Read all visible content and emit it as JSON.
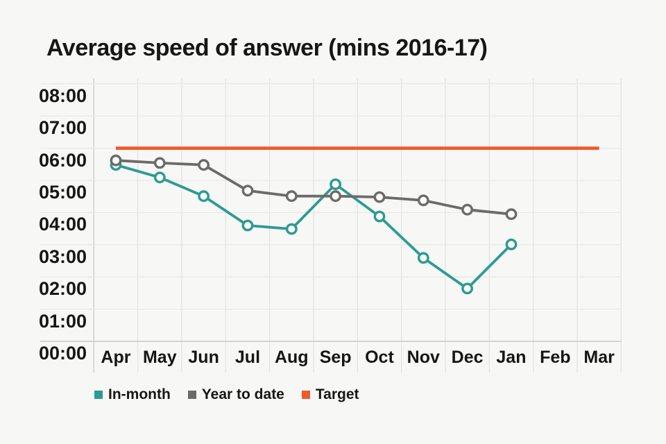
{
  "title": "Average speed of answer (mins 2016-17)",
  "legend": [
    {
      "label": "In-month",
      "color": "#2b9b93"
    },
    {
      "label": "Year to date",
      "color": "#6c6b69"
    },
    {
      "label": "Target",
      "color": "#f1592a"
    }
  ],
  "colors": {
    "background": "#f7f7f6",
    "text": "#161615",
    "in_month": "#2b9b93",
    "year_to_date": "#6c6b69",
    "target": "#f1592a"
  },
  "chart_data": {
    "type": "line",
    "title": "Average speed of answer (mins 2016-17)",
    "categories": [
      "Apr",
      "May",
      "Jun",
      "Jul",
      "Aug",
      "Sep",
      "Oct",
      "Nov",
      "Dec",
      "Jan",
      "Feb",
      "Mar"
    ],
    "y_ticks": [
      "00:00",
      "01:00",
      "02:00",
      "03:00",
      "04:00",
      "05:00",
      "06:00",
      "07:00",
      "08:00"
    ],
    "ylim": [
      0,
      8
    ],
    "unit": "minutes:seconds",
    "grid": "on",
    "legend_position": "bottom-left",
    "series": [
      {
        "name": "In-month",
        "color": "#2b9b93",
        "values": [
          "5:29",
          "5:05",
          "4:31",
          "3:36",
          "3:29",
          "4:53",
          "3:53",
          "2:35",
          "1:38",
          "3:01",
          null,
          null
        ],
        "values_min": [
          5.48,
          5.09,
          4.51,
          3.6,
          3.49,
          4.88,
          3.88,
          2.59,
          1.64,
          3.01,
          null,
          null
        ]
      },
      {
        "name": "Year to date",
        "color": "#6c6b69",
        "values": [
          "5:37",
          "5:32",
          "5:29",
          "4:41",
          "4:31",
          "4:31",
          "4:29",
          "4:23",
          "4:05",
          "3:57",
          null,
          null
        ],
        "values_min": [
          5.62,
          5.54,
          5.48,
          4.68,
          4.51,
          4.51,
          4.48,
          4.38,
          4.09,
          3.95,
          null,
          null
        ]
      }
    ],
    "target": {
      "name": "Target",
      "color": "#f1592a",
      "value": "06:00",
      "value_min": 6,
      "span": [
        "Apr",
        "Mar"
      ]
    }
  }
}
